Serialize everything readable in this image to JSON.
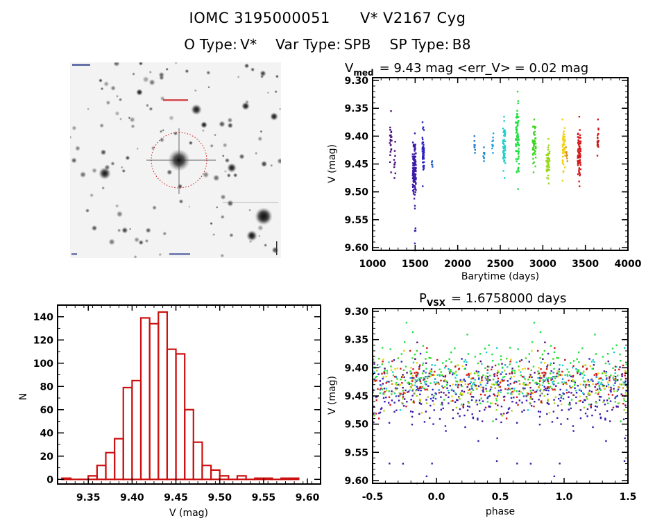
{
  "header": {
    "id": "IOMC 3195000051",
    "name": "V* V2167 Cyg",
    "otype_label": "O Type:",
    "otype": "V*",
    "vartype_label": "Var Type:",
    "vartype": "SPB",
    "sptype_label": "SP Type:",
    "sptype": "B8"
  },
  "colors": {
    "histogram": "#cc1111",
    "finder_circle": "#cc1111",
    "axis": "#000000"
  },
  "finder": {
    "type": "image",
    "description": "sky field finder chart, inverted greyscale, target centered in red dotted circle"
  },
  "chart_data": [
    {
      "type": "scatter",
      "panel": "light-curve",
      "title_main": "V",
      "title_sub": "med",
      "title_rest": "= 9.43 mag <err_V> = 0.02 mag",
      "xlabel": "Barytime (days)",
      "ylabel": "V (mag)",
      "xlim": [
        1000,
        4000
      ],
      "ylim": [
        9.605,
        9.295
      ],
      "xticks": [
        "1000",
        "1500",
        "2000",
        "2500",
        "3000",
        "3500",
        "4000"
      ],
      "xtick_values": [
        1000,
        1500,
        2000,
        2500,
        3000,
        3500,
        4000
      ],
      "yticks": [
        "9.30",
        "9.35",
        "9.40",
        "9.45",
        "9.50",
        "9.55",
        "9.60"
      ],
      "ytick_values": [
        9.3,
        9.35,
        9.4,
        9.45,
        9.5,
        9.55,
        9.6
      ],
      "groups": [
        {
          "t": [
            1200,
            1225
          ],
          "mag": [
            9.355,
            9.465
          ],
          "color": "#4b0e7a",
          "n": 22
        },
        {
          "t": [
            1250,
            1275
          ],
          "mag": [
            9.41,
            9.475
          ],
          "color": "#4b0e7a",
          "n": 10
        },
        {
          "t": [
            1470,
            1510
          ],
          "mag": [
            9.395,
            9.525
          ],
          "color": "#3d1aa8",
          "n": 120
        },
        {
          "t": [
            1495,
            1505
          ],
          "mag": [
            9.53,
            9.605
          ],
          "color": "#3d1aa8",
          "n": 7
        },
        {
          "t": [
            1585,
            1605
          ],
          "mag": [
            9.375,
            9.49
          ],
          "color": "#2a24c0",
          "n": 55
        },
        {
          "t": [
            1695,
            1705
          ],
          "mag": [
            9.445,
            9.455
          ],
          "color": "#1f5cc8",
          "n": 5
        },
        {
          "t": [
            2195,
            2205
          ],
          "mag": [
            9.4,
            9.43
          ],
          "color": "#1e78d0",
          "n": 8
        },
        {
          "t": [
            2300,
            2315
          ],
          "mag": [
            9.42,
            9.445
          ],
          "color": "#1e88d0",
          "n": 8
        },
        {
          "t": [
            2405,
            2420
          ],
          "mag": [
            9.395,
            9.43
          ],
          "color": "#1ea0d8",
          "n": 10
        },
        {
          "t": [
            2530,
            2560
          ],
          "mag": [
            9.365,
            9.475
          ],
          "color": "#1ed0c8",
          "n": 55
        },
        {
          "t": [
            2680,
            2720
          ],
          "mag": [
            9.32,
            9.495
          ],
          "color": "#1ee040",
          "n": 70
        },
        {
          "t": [
            2880,
            2920
          ],
          "mag": [
            9.37,
            9.465
          ],
          "color": "#3ad41e",
          "n": 50
        },
        {
          "t": [
            3040,
            3080
          ],
          "mag": [
            9.405,
            9.485
          ],
          "color": "#9ad81e",
          "n": 45
        },
        {
          "t": [
            3230,
            3260
          ],
          "mag": [
            9.37,
            9.48
          ],
          "color": "#f0d010",
          "n": 45
        },
        {
          "t": [
            3270,
            3290
          ],
          "mag": [
            9.42,
            9.445
          ],
          "color": "#e08a1a",
          "n": 10
        },
        {
          "t": [
            3410,
            3445
          ],
          "mag": [
            9.365,
            9.49
          ],
          "color": "#d41818",
          "n": 70
        },
        {
          "t": [
            3640,
            3655
          ],
          "mag": [
            9.37,
            9.435
          ],
          "color": "#c81818",
          "n": 20
        }
      ]
    },
    {
      "type": "bar",
      "panel": "histogram",
      "xlabel": "V (mag)",
      "ylabel": "N",
      "xlim": [
        9.315,
        9.615
      ],
      "ylim": [
        -4,
        150
      ],
      "xticks": [
        "9.35",
        "9.40",
        "9.45",
        "9.50",
        "9.55",
        "9.60"
      ],
      "xtick_values": [
        9.35,
        9.4,
        9.45,
        9.5,
        9.55,
        9.6
      ],
      "yticks": [
        "0",
        "20",
        "40",
        "60",
        "80",
        "100",
        "120",
        "140"
      ],
      "ytick_values": [
        0,
        20,
        40,
        60,
        80,
        100,
        120,
        140
      ],
      "bin_width": 0.01,
      "bin_starts": [
        9.32,
        9.33,
        9.34,
        9.35,
        9.36,
        9.37,
        9.38,
        9.39,
        9.4,
        9.41,
        9.42,
        9.43,
        9.44,
        9.45,
        9.46,
        9.47,
        9.48,
        9.49,
        9.5,
        9.51,
        9.52,
        9.53,
        9.54,
        9.55,
        9.56,
        9.57,
        9.58
      ],
      "values": [
        1,
        0,
        0,
        3,
        12,
        23,
        35,
        79,
        85,
        139,
        134,
        144,
        112,
        108,
        60,
        32,
        12,
        8,
        3,
        0,
        3,
        0,
        1,
        1,
        0,
        1,
        1
      ]
    },
    {
      "type": "scatter",
      "panel": "phased-light-curve",
      "title_main": "P",
      "title_sub": "VSX",
      "title_rest": "= 1.6758000 days",
      "period_days": 1.6758,
      "xlabel": "phase",
      "ylabel": "V (mag)",
      "xlim": [
        -0.5,
        1.5
      ],
      "ylim": [
        9.605,
        9.295
      ],
      "xticks": [
        "-0.5",
        "0.0",
        "0.5",
        "1.0",
        "1.5"
      ],
      "xtick_values": [
        -0.5,
        0.0,
        0.5,
        1.0,
        1.5
      ],
      "yticks": [
        "9.30",
        "9.35",
        "9.40",
        "9.45",
        "9.50",
        "9.55",
        "9.60"
      ],
      "ytick_values": [
        9.3,
        9.35,
        9.4,
        9.45,
        9.5,
        9.55,
        9.6
      ]
    }
  ]
}
